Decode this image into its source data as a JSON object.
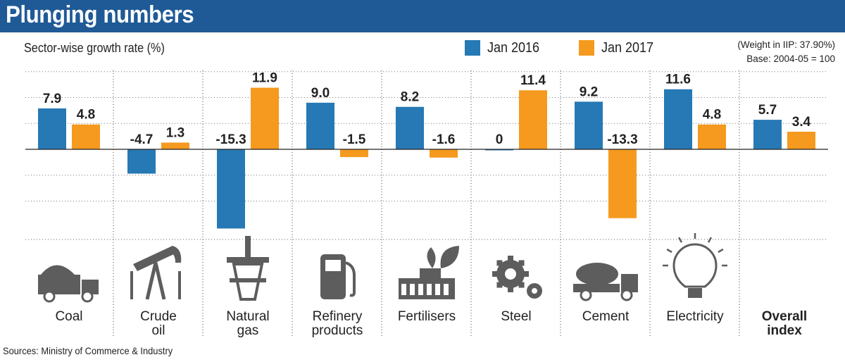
{
  "header": {
    "title": "Plunging numbers"
  },
  "subtitle": "Sector-wise growth rate (%)",
  "legend": [
    {
      "label": "Jan 2016",
      "color": "#2679b4"
    },
    {
      "label": "Jan 2017",
      "color": "#f59a1e"
    }
  ],
  "notes": [
    "(Weight in IIP: 37.90%)",
    "Base: 2004-05 = 100"
  ],
  "source": "Sources: Ministry of Commerce & Industry",
  "chart_data": {
    "type": "bar",
    "title": "Plunging numbers",
    "subtitle": "Sector-wise growth rate (%)",
    "categories": [
      "Coal",
      "Crude oil",
      "Natural gas",
      "Refinery products",
      "Fertilisers",
      "Steel",
      "Cement",
      "Electricity",
      "Overall index"
    ],
    "category_lines": [
      [
        "Coal"
      ],
      [
        "Crude",
        "oil"
      ],
      [
        "Natural",
        "gas"
      ],
      [
        "Refinery",
        "products"
      ],
      [
        "Fertilisers"
      ],
      [
        "Steel"
      ],
      [
        "Cement"
      ],
      [
        "Electricity"
      ],
      [
        "Overall",
        "index"
      ]
    ],
    "icons": [
      "truck-icon",
      "oil-pump-icon",
      "gas-rig-icon",
      "fuel-pump-icon",
      "factory-leaf-icon",
      "gears-icon",
      "cement-mixer-icon",
      "lightbulb-icon",
      ""
    ],
    "series": [
      {
        "name": "Jan 2016",
        "values": [
          7.9,
          -4.7,
          -15.3,
          9.0,
          8.2,
          0,
          9.2,
          11.6,
          5.7
        ],
        "labels": [
          "7.9",
          "-4.7",
          "-15.3",
          "9.0",
          "8.2",
          "0",
          "9.2",
          "11.6",
          "5.7"
        ]
      },
      {
        "name": "Jan 2017",
        "values": [
          4.8,
          1.3,
          11.9,
          -1.5,
          -1.6,
          11.4,
          -13.3,
          4.8,
          3.4
        ],
        "labels": [
          "4.8",
          "1.3",
          "11.9",
          "-1.5",
          "-1.6",
          "11.4",
          "-13.3",
          "4.8",
          "3.4"
        ]
      }
    ],
    "ylim": [
      -15.5,
      15.5
    ],
    "grid": true,
    "legend_position": "top-right",
    "colors": {
      "jan2016": "#2679b4",
      "jan2017": "#f59a1e"
    }
  }
}
